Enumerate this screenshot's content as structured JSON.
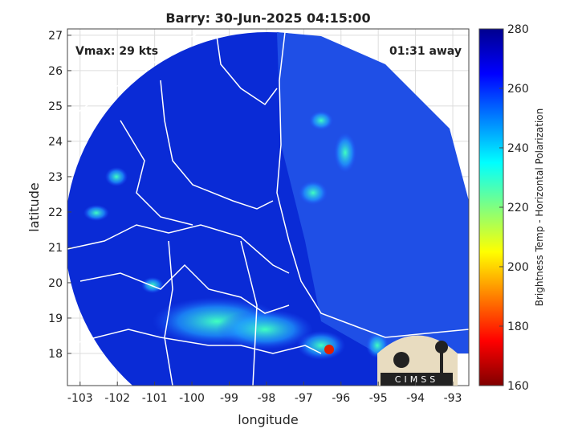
{
  "map": {
    "title": "Barry: 30-Jun-2025 04:15:00",
    "xlabel": "longitude",
    "ylabel": "latitude",
    "xlim": [
      -103.34,
      -92.57
    ],
    "ylim": [
      17.09,
      27.18
    ],
    "xticks": [
      -103,
      -102,
      -101,
      -100,
      -99,
      -98,
      -97,
      -96,
      -95,
      -94,
      -93
    ],
    "yticks": [
      18,
      19,
      20,
      21,
      22,
      23,
      24,
      25,
      26,
      27
    ],
    "grid": true,
    "annotations": [
      "Vmax: 29 kts",
      "01:31 away"
    ],
    "colorbar": {
      "label": "Brightness Temp - Horizontal Polarization",
      "lim": [
        160,
        280
      ],
      "ticks": [
        160,
        180,
        200,
        220,
        240,
        260,
        280
      ]
    }
  },
  "logo": "CIMSS"
}
